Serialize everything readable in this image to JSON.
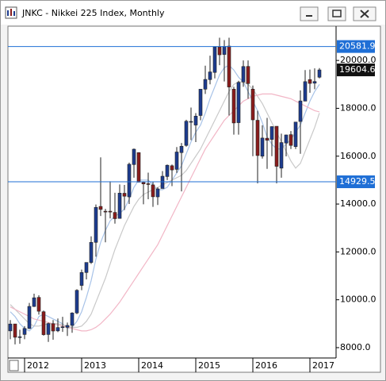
{
  "chart_data": {
    "type": "candlestick",
    "title": "JNKC - Nikkei 225 Index, Monthly",
    "categories": [
      null,
      null,
      null,
      "2012",
      null,
      null,
      null,
      null,
      null,
      null,
      null,
      null,
      null,
      null,
      null,
      "2013",
      null,
      null,
      null,
      null,
      null,
      null,
      null,
      null,
      null,
      null,
      null,
      "2014",
      null,
      null,
      null,
      null,
      null,
      null,
      null,
      null,
      null,
      null,
      null,
      "2015",
      null,
      null,
      null,
      null,
      null,
      null,
      null,
      null,
      null,
      null,
      null,
      "2016",
      null,
      null,
      null,
      null,
      null,
      null,
      null,
      null,
      null,
      null,
      null,
      "2017",
      null,
      null
    ],
    "open": [
      8700,
      8990,
      8430,
      8550,
      8800,
      9720,
      10100,
      9500,
      8550,
      9000,
      8700,
      8840,
      8850,
      8930,
      9450,
      10600,
      11140,
      11560,
      12400,
      13900,
      13700,
      13700,
      13650,
      13400,
      14450,
      14300,
      15650,
      16150,
      14900,
      14850,
      14800,
      14300,
      14650,
      15150,
      15600,
      15450,
      16150,
      16450,
      17450,
      17300,
      17700,
      18800,
      19200,
      19500,
      20560,
      20250,
      20600,
      18800,
      17400,
      19100,
      19750,
      18800,
      17500,
      16000,
      16750,
      16700,
      17250,
      15500,
      16550,
      16900,
      16400,
      17450,
      18300,
      19200,
      19050,
      19300
    ],
    "high": [
      9150,
      8990,
      8750,
      8900,
      9870,
      10255,
      10190,
      9550,
      9050,
      9150,
      9220,
      9290,
      9050,
      9480,
      10440,
      11260,
      11500,
      12650,
      13980,
      15950,
      13800,
      14950,
      14470,
      14820,
      14800,
      15730,
      16320,
      16160,
      14950,
      15310,
      14920,
      14700,
      15380,
      15650,
      15650,
      16380,
      16550,
      17520,
      18030,
      17800,
      18800,
      19780,
      20200,
      20570,
      20950,
      20850,
      20950,
      18900,
      19150,
      20000,
      20000,
      18950,
      17900,
      17290,
      17600,
      17250,
      17250,
      16940,
      16900,
      17050,
      17430,
      18750,
      19600,
      19620,
      19670,
      19680
    ],
    "low": [
      8350,
      8135,
      8160,
      8350,
      8780,
      9700,
      9380,
      8500,
      8240,
      8330,
      8650,
      8660,
      8490,
      8620,
      9400,
      10400,
      10850,
      11500,
      11800,
      13500,
      12400,
      13400,
      13180,
      13400,
      13750,
      14000,
      15100,
      14900,
      13990,
      14200,
      13880,
      13960,
      14650,
      15000,
      14750,
      15300,
      14530,
      16400,
      16670,
      16590,
      17500,
      18600,
      19000,
      19250,
      19800,
      19120,
      17700,
      16900,
      16900,
      18900,
      18400,
      16000,
      14865,
      15900,
      15470,
      16000,
      14864,
      15100,
      15990,
      16300,
      16300,
      16100,
      18300,
      18650,
      18800,
      19250
    ],
    "close": [
      8988,
      8434,
      8455,
      8802,
      9723,
      10083,
      9521,
      8543,
      9007,
      8695,
      8840,
      8870,
      8928,
      9446,
      10395,
      11139,
      11559,
      12398,
      13861,
      13775,
      13677,
      13668,
      13389,
      14456,
      14327,
      15662,
      16291,
      14915,
      14841,
      14828,
      14304,
      14632,
      15162,
      15621,
      15425,
      16174,
      16414,
      17460,
      17451,
      17674,
      18798,
      19207,
      19520,
      20563,
      20236,
      20585,
      18890,
      17388,
      19083,
      19747,
      19034,
      17518,
      16027,
      16758,
      16666,
      17235,
      15576,
      16569,
      16887,
      16450,
      17425,
      18308,
      19114,
      19041,
      19119,
      19604.6
    ],
    "up_color": "#1d3c8f",
    "down_color": "#8a1c1c",
    "lines": [
      {
        "color": "#a8c3e8",
        "values": [
          9500,
          9300,
          9000,
          8800,
          8700,
          8900,
          9300,
          9400,
          9300,
          9200,
          9100,
          9000,
          8800,
          8850,
          9100,
          9500,
          10100,
          10800,
          11700,
          12400,
          12900,
          13300,
          13500,
          13600,
          13800,
          14200,
          14700,
          15000,
          15000,
          15000,
          14800,
          14600,
          14600,
          14700,
          15000,
          15300,
          15600,
          16100,
          16600,
          17000,
          17300,
          17800,
          18400,
          18900,
          19400,
          19700,
          19800,
          19600,
          19300,
          19100,
          18700,
          18300,
          17900,
          17400,
          16800,
          16500,
          16300,
          16300,
          16500,
          16700,
          17000,
          17300,
          17800,
          18300,
          18700,
          19000
        ]
      },
      {
        "color": "#c9c9c9",
        "values": [
          9800,
          9600,
          9400,
          9200,
          9000,
          8900,
          8900,
          8950,
          9000,
          9000,
          9000,
          8950,
          8900,
          8850,
          8850,
          8900,
          9100,
          9400,
          9900,
          10400,
          10900,
          11500,
          12100,
          12600,
          13100,
          13500,
          13900,
          14200,
          14400,
          14500,
          14600,
          14700,
          14800,
          14900,
          15000,
          15100,
          15200,
          15400,
          15700,
          16000,
          16300,
          16700,
          17100,
          17500,
          17900,
          18300,
          18700,
          19000,
          19100,
          19100,
          19000,
          18800,
          18500,
          18200,
          17800,
          17400,
          17000,
          16600,
          16200,
          15800,
          15500,
          15700,
          16200,
          16700,
          17200,
          17800
        ]
      },
      {
        "color": "#f2b6c6",
        "values": [
          9700,
          9600,
          9500,
          9400,
          9300,
          9200,
          9150,
          9100,
          9050,
          9000,
          8950,
          8900,
          8850,
          8800,
          8750,
          8700,
          8700,
          8750,
          8850,
          9000,
          9200,
          9400,
          9650,
          9900,
          10200,
          10500,
          10800,
          11100,
          11400,
          11700,
          12000,
          12300,
          12700,
          13100,
          13500,
          13900,
          14300,
          14700,
          15100,
          15500,
          15900,
          16300,
          16600,
          16900,
          17200,
          17500,
          17700,
          17900,
          18100,
          18300,
          18400,
          18500,
          18550,
          18600,
          18600,
          18600,
          18550,
          18500,
          18450,
          18400,
          18300,
          18200,
          18100,
          18000,
          17900,
          17850
        ]
      }
    ],
    "hlines": [
      {
        "value": 20581.9,
        "color": "#1f6fd6"
      },
      {
        "value": 14929.5,
        "color": "#1f6fd6"
      }
    ],
    "last_price": {
      "value": 19604.6,
      "color": "#111111"
    },
    "ylim": [
      7568,
      21431
    ],
    "yticks": [
      {
        "value": 8000,
        "label": "8000.0"
      },
      {
        "value": 10000,
        "label": "10000.0"
      },
      {
        "value": 12000,
        "label": "12000.0"
      },
      {
        "value": 14000,
        "label": "14000.0"
      },
      {
        "value": 16000,
        "label": "16000.0"
      },
      {
        "value": 18000,
        "label": "18000.0"
      },
      {
        "value": 20000,
        "label": "20000.0"
      }
    ]
  }
}
